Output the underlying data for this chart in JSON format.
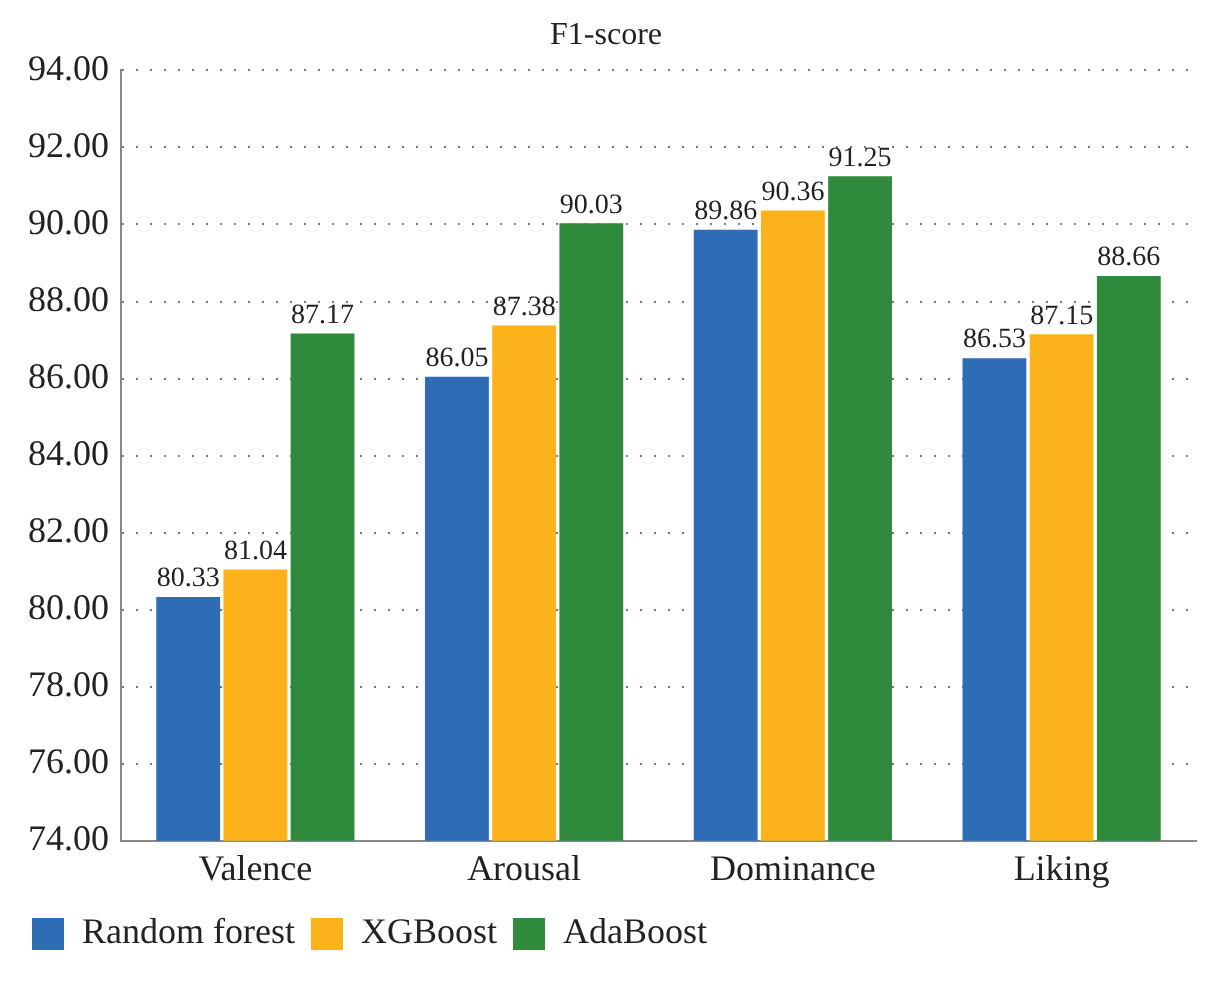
{
  "chart_data": {
    "type": "bar",
    "title": "F1-score",
    "categories": [
      "Valence",
      "Arousal",
      "Dominance",
      "Liking"
    ],
    "series": [
      {
        "name": "Random forest",
        "color": "#2e6db6",
        "values": [
          80.33,
          86.05,
          89.86,
          86.53
        ]
      },
      {
        "name": "XGBoost",
        "color": "#fbb21b",
        "values": [
          81.04,
          87.38,
          90.36,
          87.15
        ]
      },
      {
        "name": "AdaBoost",
        "color": "#2f8a3c",
        "values": [
          87.17,
          90.03,
          91.25,
          88.66
        ]
      }
    ],
    "ylim": [
      74,
      94
    ],
    "yticks": [
      {
        "value": 74,
        "label": "74.00"
      },
      {
        "value": 76,
        "label": "76.00"
      },
      {
        "value": 78,
        "label": "78.00"
      },
      {
        "value": 80,
        "label": "80.00"
      },
      {
        "value": 82,
        "label": "82.00"
      },
      {
        "value": 84,
        "label": "84.00"
      },
      {
        "value": 86,
        "label": "86.00"
      },
      {
        "value": 88,
        "label": "88.00"
      },
      {
        "value": 90,
        "label": "90.00"
      },
      {
        "value": 92,
        "label": "92.00"
      },
      {
        "value": 94,
        "label": "94.00"
      }
    ],
    "grid": "y",
    "legend": "bottom left",
    "data_labels": true
  }
}
